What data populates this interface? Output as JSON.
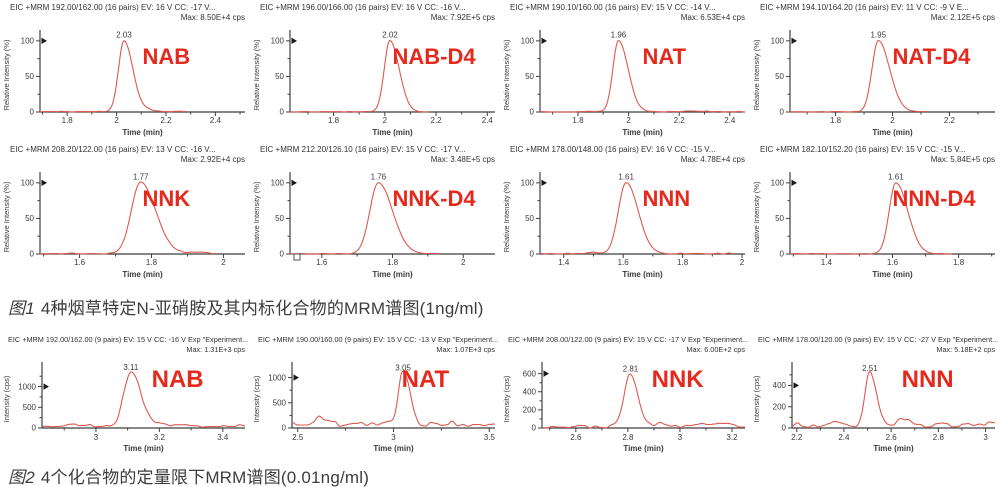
{
  "colors": {
    "trace": "#dd5a50",
    "compound_label": "#e5291c",
    "axis": "#3f3f3f",
    "tick_text": "#3a3a3a",
    "header_text": "#333333",
    "caption_text": "#3d3d3d",
    "marker": "#1a1a1a"
  },
  "chart_data": [
    {
      "type": "line",
      "figure_label": "图1",
      "caption": "4种烟草特定N-亚硝胺及其内标化合物的MRM谱图(1ng/ml)",
      "ylabel": "Relative Intensity (%)",
      "xlabel": "Time (min)",
      "columns": 4,
      "plots": [
        {
          "compound": "NAB",
          "header": "EIC +MRM 192.00/162.00 (16 pairs) EV: 16 V CC: -17 V...",
          "max_label": "Max: 8.50E+4 cps",
          "peak_rt": 2.03,
          "peak_annotation": "2.03",
          "peak_height": 100,
          "x_range": [
            1.69,
            2.52
          ],
          "x_ticks": [
            1.8,
            2,
            2.2,
            2.4
          ],
          "y_ticks": [
            0,
            50,
            100
          ],
          "y_max": 104,
          "sigma": [
            0.022,
            0.036
          ],
          "noise_base": 0.5,
          "noise_amp": 0.7,
          "seed": 11,
          "trace_end": 2.28,
          "bumps": [
            {
              "rt": 2.13,
              "h": 2.5,
              "s": 0.025
            }
          ],
          "origin_square": false
        },
        {
          "compound": "NAB-D4",
          "header": "EIC +MRM 196.00/166.00 (16 pairs) EV: 16 V CC: -16 V...",
          "max_label": "Max: 7.92E+5 cps",
          "peak_rt": 2.02,
          "peak_annotation": "2.02",
          "peak_height": 100,
          "x_range": [
            1.63,
            2.43
          ],
          "x_ticks": [
            1.8,
            2,
            2.2,
            2.4
          ],
          "y_ticks": [
            0,
            50,
            100
          ],
          "y_max": 104,
          "sigma": [
            0.022,
            0.036
          ],
          "noise_base": 0.3,
          "noise_amp": 0.4,
          "seed": 12,
          "trace_end": 2.17,
          "bumps": [],
          "origin_square": false
        },
        {
          "compound": "NAT",
          "header": "EIC +MRM 190.10/160.00 (16 pairs) EV: 15 V CC: -14 V...",
          "max_label": "Max: 6.53E+4 cps",
          "peak_rt": 1.96,
          "peak_annotation": "1.96",
          "peak_height": 100,
          "x_range": [
            1.65,
            2.46
          ],
          "x_ticks": [
            1.8,
            2,
            2.2,
            2.4
          ],
          "y_ticks": [
            0,
            50,
            100
          ],
          "y_max": 104,
          "sigma": [
            0.022,
            0.038
          ],
          "noise_base": 0.5,
          "noise_amp": 0.7,
          "seed": 13,
          "trace_end": 2.46,
          "bumps": [
            {
              "rt": 2.25,
              "h": 1.5,
              "s": 0.03
            }
          ],
          "origin_square": false
        },
        {
          "compound": "NAT-D4",
          "header": "EIC +MRM 194.10/164.20 (16 pairs) EV: 11 V CC: -9 V E...",
          "max_label": "Max: 2.12E+5 cps",
          "peak_rt": 1.95,
          "peak_annotation": "1.95",
          "peak_height": 100,
          "x_range": [
            1.64,
            2.36
          ],
          "x_ticks": [
            1.8,
            2,
            2.2
          ],
          "y_ticks": [
            0,
            50,
            100
          ],
          "y_max": 104,
          "sigma": [
            0.022,
            0.04
          ],
          "noise_base": 0.3,
          "noise_amp": 0.4,
          "seed": 14,
          "trace_end": 2.12,
          "bumps": [],
          "origin_square": false
        },
        {
          "compound": "NNK",
          "header": "EIC +MRM 208.20/122.00 (16 pairs) EV: 13 V CC: -16 V...",
          "max_label": "Max: 2.92E+4 cps",
          "peak_rt": 1.77,
          "peak_annotation": "1.77",
          "peak_height": 100,
          "x_range": [
            1.49,
            2.06
          ],
          "x_ticks": [
            1.6,
            1.8,
            2
          ],
          "y_ticks": [
            0,
            50,
            100
          ],
          "y_max": 104,
          "sigma": [
            0.026,
            0.042
          ],
          "noise_base": 0.6,
          "noise_amp": 0.8,
          "seed": 15,
          "trace_end": 1.98,
          "bumps": [
            {
              "rt": 1.93,
              "h": 2,
              "s": 0.025
            }
          ],
          "origin_square": false
        },
        {
          "compound": "NNK-D4",
          "header": "EIC +MRM 212.20/126.10 (16 pairs) EV: 15 V CC: -17 V...",
          "max_label": "Max: 3.48E+5 cps",
          "peak_rt": 1.76,
          "peak_annotation": "1.76",
          "peak_height": 100,
          "x_range": [
            1.51,
            2.09
          ],
          "x_ticks": [
            1.6,
            1.8,
            2
          ],
          "y_ticks": [
            0,
            50,
            100
          ],
          "y_max": 104,
          "sigma": [
            0.024,
            0.04
          ],
          "noise_base": 0.3,
          "noise_amp": 0.4,
          "seed": 16,
          "trace_end": 1.93,
          "bumps": [],
          "origin_square": true
        },
        {
          "compound": "NNN",
          "header": "EIC +MRM 178.00/148.00 (16 pairs) EV: 16 V CC: -15 V...",
          "max_label": "Max: 4.78E+4 cps",
          "peak_rt": 1.61,
          "peak_annotation": "1.61",
          "peak_height": 100,
          "x_range": [
            1.32,
            2.01
          ],
          "x_ticks": [
            1.4,
            1.6,
            1.8,
            2
          ],
          "y_ticks": [
            0,
            50,
            100
          ],
          "y_max": 104,
          "sigma": [
            0.026,
            0.04
          ],
          "noise_base": 0.6,
          "noise_amp": 0.8,
          "seed": 17,
          "trace_end": 1.97,
          "bumps": [
            {
              "rt": 1.5,
              "h": 1.5,
              "s": 0.02
            }
          ],
          "origin_square": false
        },
        {
          "compound": "NNN-D4",
          "header": "EIC +MRM 182.10/152.20 (16 pairs) EV: 15 V CC: -15 V...",
          "max_label": "Max: 5.84E+5 cps",
          "peak_rt": 1.61,
          "peak_annotation": "1.61",
          "peak_height": 100,
          "x_range": [
            1.29,
            1.91
          ],
          "x_ticks": [
            1.4,
            1.6,
            1.8
          ],
          "y_ticks": [
            0,
            50,
            100
          ],
          "y_max": 104,
          "sigma": [
            0.02,
            0.036
          ],
          "noise_base": 0.3,
          "noise_amp": 0.4,
          "seed": 18,
          "trace_end": 1.78,
          "bumps": [],
          "origin_square": false
        }
      ]
    },
    {
      "type": "line",
      "figure_label": "图2",
      "caption": "4个化合物的定量限下MRM谱图(0.01ng/ml)",
      "ylabel": "Intensity (cps)",
      "xlabel": "Time (min)",
      "columns": 4,
      "plots": [
        {
          "compound": "NAB",
          "header": "EIC +MRM 192.00/162.00 (9 pairs) EV: 15 V CC: -16 V Exp \"Experiment...",
          "max_label": "Max: 1.31E+3 cps",
          "peak_rt": 3.11,
          "peak_annotation": "3.11",
          "peak_height": 1310,
          "x_range": [
            2.83,
            3.47
          ],
          "x_ticks": [
            3,
            3.2,
            3.4
          ],
          "y_ticks": [
            0,
            500,
            1000
          ],
          "y_max": 1400,
          "sigma": [
            0.022,
            0.032
          ],
          "noise_base": 45,
          "noise_amp": 40,
          "seed": 21,
          "bumps": [
            {
              "rt": 3.21,
              "h": 55,
              "s": 0.03
            },
            {
              "rt": 2.95,
              "h": 25,
              "s": 0.03
            }
          ],
          "origin_square": false
        },
        {
          "compound": "NAT",
          "header": "EIC +MRM 190.00/160.00 (9 pairs) EV: 15 V CC: -13 V Exp \"Experiment...",
          "max_label": "Max: 1.07E+3 cps",
          "peak_rt": 3.05,
          "peak_annotation": "3.05",
          "peak_height": 1070,
          "x_range": [
            2.47,
            3.53
          ],
          "x_ticks": [
            2.5,
            3,
            3.5
          ],
          "y_ticks": [
            0,
            500,
            1000
          ],
          "y_max": 1150,
          "sigma": [
            0.022,
            0.034
          ],
          "noise_base": 95,
          "noise_amp": 65,
          "seed": 22,
          "bumps": [
            {
              "rt": 2.62,
              "h": 95,
              "s": 0.028
            },
            {
              "rt": 2.79,
              "h": 40,
              "s": 0.03
            }
          ],
          "origin_square": false
        },
        {
          "compound": "NNK",
          "header": "EIC +MRM 208.00/122.00 (9 pairs) EV: 15 V CC: -17 V Exp \"Experiment...",
          "max_label": "Max: 6.00E+2 cps",
          "peak_rt": 2.81,
          "peak_annotation": "2.81",
          "peak_height": 585,
          "x_range": [
            2.47,
            3.25
          ],
          "x_ticks": [
            2.6,
            2.8,
            3,
            3.2
          ],
          "y_ticks": [
            0,
            200,
            400,
            600
          ],
          "y_max": 640,
          "sigma": [
            0.024,
            0.028
          ],
          "noise_base": 15,
          "noise_amp": 16,
          "seed": 23,
          "bumps": [
            {
              "rt": 2.93,
              "h": 38,
              "s": 0.025
            },
            {
              "rt": 3.07,
              "h": 24,
              "s": 0.03
            },
            {
              "rt": 3.17,
              "h": 30,
              "s": 0.03
            }
          ],
          "origin_square": false
        },
        {
          "compound": "NNN",
          "header": "EIC +MRM 178.00/120.00 (9 pairs) EV: 15 V CC: -27 V Exp \"Experiment...",
          "max_label": "Max: 5.18E+2 cps",
          "peak_rt": 2.51,
          "peak_annotation": "2.51",
          "peak_height": 505,
          "x_range": [
            2.18,
            3.04
          ],
          "x_ticks": [
            2.2,
            2.4,
            2.6,
            2.8,
            3
          ],
          "y_ticks": [
            0,
            200,
            400
          ],
          "y_max": 545,
          "sigma": [
            0.02,
            0.026
          ],
          "noise_base": 26,
          "noise_amp": 24,
          "seed": 24,
          "bumps": [
            {
              "rt": 2.65,
              "h": 60,
              "s": 0.022
            },
            {
              "rt": 2.35,
              "h": 20,
              "s": 0.03
            },
            {
              "rt": 3.0,
              "h": 22,
              "s": 0.025
            }
          ],
          "origin_square": false
        }
      ]
    }
  ]
}
